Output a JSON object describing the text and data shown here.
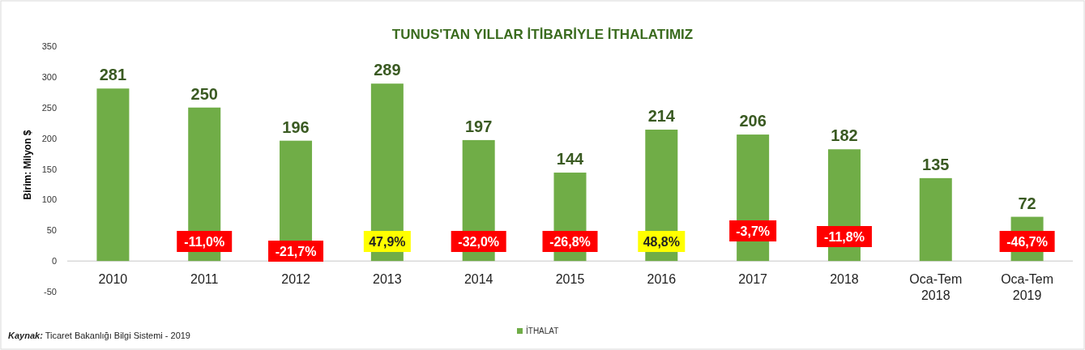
{
  "chart_data": {
    "type": "bar",
    "title": "TUNUS'TAN YILLAR İTİBARİYLE İTHALATIMIZ",
    "ylabel": "Birim: Milyon $",
    "categories": [
      "2010",
      "2011",
      "2012",
      "2013",
      "2014",
      "2015",
      "2016",
      "2017",
      "2018",
      "Oca-Tem 2018",
      "Oca-Tem 2019"
    ],
    "series": [
      {
        "name": "İTHALAT",
        "color": "#70ad47",
        "values": [
          281,
          250,
          196,
          289,
          197,
          144,
          214,
          206,
          182,
          135,
          72
        ]
      }
    ],
    "ylim": [
      -50,
      350
    ],
    "yticks": [
      -50,
      0,
      50,
      100,
      150,
      200,
      250,
      300,
      350
    ],
    "grid": false,
    "legend": "bottom",
    "data_labels": true,
    "annotations": [
      "-11,0%",
      "-21,7%",
      "47,9%",
      "-32,0%",
      "-26,8%",
      "48,8%",
      "-3,7%",
      "-11,8%",
      "-46,7%",
      "Kaynak: Ticaret Bakanlığı Bilgi Sistemi -  2019"
    ]
  }
}
